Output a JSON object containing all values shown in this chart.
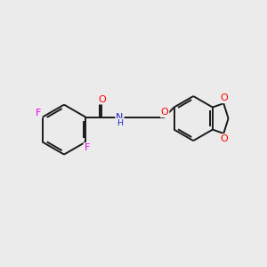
{
  "background_color": "#ebebeb",
  "bond_color": "#1a1a1a",
  "atom_colors": {
    "F": "#ee00ee",
    "O": "#ff0000",
    "N": "#2222cc",
    "C": "#1a1a1a"
  },
  "figsize": [
    3.0,
    3.0
  ],
  "dpi": 100,
  "lw": 1.4,
  "fontsize": 8.0
}
